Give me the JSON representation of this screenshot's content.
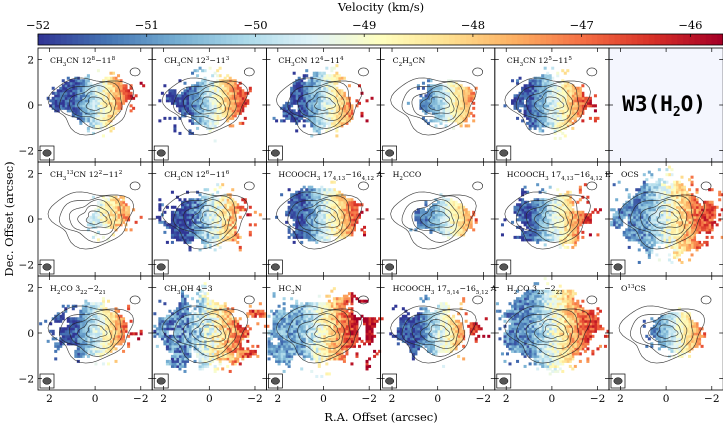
{
  "chart_data": {
    "type": "heatmap",
    "title": "Velocity (km/s)",
    "colorbar": {
      "label": "Velocity (km/s)",
      "range": [
        -52,
        -45.7
      ],
      "ticks": [
        -52,
        -51,
        -50,
        -49,
        -48,
        -47,
        -46
      ],
      "tick_labels": [
        "−52",
        "−51",
        "−50",
        "−49",
        "−48",
        "−47",
        "−46"
      ],
      "colormap": "RdYlBu_r"
    },
    "xlabel": "R.A. Offset (arcsec)",
    "ylabel": "Dec. Offset (arcsec)",
    "xlim": [
      2.5,
      -2.5
    ],
    "ylim": [
      -2.5,
      2.5
    ],
    "x_ticks": [
      2,
      0,
      -2
    ],
    "x_tick_labels": [
      "2",
      "0",
      "−2"
    ],
    "y_ticks": [
      2,
      0,
      -2
    ],
    "y_tick_labels": [
      "2",
      "0",
      "−2"
    ],
    "legend_placement": "title panel top-right: W3(H2O)",
    "source_name": "W3(H2O)",
    "panels": [
      {
        "row": 0,
        "col": 0,
        "label": "CH3CN 12_8-11_8",
        "parts": [
          [
            "CH",
            0
          ],
          [
            "3",
            1
          ],
          [
            "CN 12",
            0
          ],
          [
            "8",
            -1
          ],
          [
            "−11",
            0
          ],
          [
            "8",
            -1
          ]
        ],
        "style": "blue-red"
      },
      {
        "row": 0,
        "col": 1,
        "label": "CH3CN 12_3-11_3",
        "parts": [
          [
            "CH",
            0
          ],
          [
            "3",
            1
          ],
          [
            "CN 12",
            0
          ],
          [
            "3",
            -1
          ],
          [
            "−11",
            0
          ],
          [
            "3",
            -1
          ]
        ],
        "style": "blue-red"
      },
      {
        "row": 0,
        "col": 2,
        "label": "CH3CN 12_4-11_4",
        "parts": [
          [
            "CH",
            0
          ],
          [
            "3",
            1
          ],
          [
            "CN 12",
            0
          ],
          [
            "4",
            -1
          ],
          [
            "−11",
            0
          ],
          [
            "4",
            -1
          ]
        ],
        "style": "blue-red"
      },
      {
        "row": 0,
        "col": 3,
        "label": "C2H5CN",
        "parts": [
          [
            "C",
            0
          ],
          [
            "2",
            1
          ],
          [
            "H",
            0
          ],
          [
            "5",
            1
          ],
          [
            "CN",
            0
          ]
        ],
        "style": "small"
      },
      {
        "row": 0,
        "col": 4,
        "label": "CH3CN 12_5-11_5",
        "parts": [
          [
            "CH",
            0
          ],
          [
            "3",
            1
          ],
          [
            "CN 12",
            0
          ],
          [
            "5",
            -1
          ],
          [
            "−11",
            0
          ],
          [
            "5",
            -1
          ]
        ],
        "style": "blue-red"
      },
      {
        "row": 0,
        "col": 5,
        "label": "",
        "parts": [],
        "style": "title"
      },
      {
        "row": 1,
        "col": 0,
        "label": "CH3 13CN 12_2-11_2",
        "parts": [
          [
            "CH",
            0
          ],
          [
            "3",
            1
          ],
          [
            "13",
            -1
          ],
          [
            "CN 12",
            0
          ],
          [
            "2",
            -1
          ],
          [
            "−11",
            0
          ],
          [
            "2",
            -1
          ]
        ],
        "style": "sparse"
      },
      {
        "row": 1,
        "col": 1,
        "label": "CH3CN 12_6-11_6",
        "parts": [
          [
            "CH",
            0
          ],
          [
            "3",
            1
          ],
          [
            "CN 12",
            0
          ],
          [
            "6",
            -1
          ],
          [
            "−11",
            0
          ],
          [
            "6",
            -1
          ]
        ],
        "style": "deep-blue"
      },
      {
        "row": 1,
        "col": 2,
        "label": "HCOOCH3 17_4,13-16_4,12 A",
        "parts": [
          [
            "HCOOCH",
            0
          ],
          [
            "3",
            1
          ],
          [
            " 17",
            0
          ],
          [
            "4,13",
            1
          ],
          [
            "−16",
            0
          ],
          [
            "4,12",
            1
          ],
          [
            " A",
            0
          ]
        ],
        "style": "blue-red"
      },
      {
        "row": 1,
        "col": 3,
        "label": "H2CCO",
        "parts": [
          [
            "H",
            0
          ],
          [
            "2",
            1
          ],
          [
            "CCO",
            0
          ]
        ],
        "style": "small"
      },
      {
        "row": 1,
        "col": 4,
        "label": "HCOOCH3 17_4,13-16_4,12 E",
        "parts": [
          [
            "HCOOCH",
            0
          ],
          [
            "3",
            1
          ],
          [
            " 17",
            0
          ],
          [
            "4,13",
            1
          ],
          [
            "−16",
            0
          ],
          [
            "4,12",
            1
          ],
          [
            " E",
            0
          ]
        ],
        "style": "blue-red"
      },
      {
        "row": 1,
        "col": 5,
        "label": "OCS",
        "parts": [
          [
            "OCS",
            0
          ]
        ],
        "style": "wide-soft"
      },
      {
        "row": 2,
        "col": 0,
        "label": "H2CO 3_22-2_21",
        "parts": [
          [
            "H",
            0
          ],
          [
            "2",
            1
          ],
          [
            "CO 3",
            0
          ],
          [
            "22",
            1
          ],
          [
            "−2",
            0
          ],
          [
            "21",
            1
          ]
        ],
        "style": "blue-red"
      },
      {
        "row": 2,
        "col": 1,
        "label": "CH3OH 4-3",
        "parts": [
          [
            "CH",
            0
          ],
          [
            "3",
            1
          ],
          [
            "OH 4−3",
            0
          ]
        ],
        "style": "patchy"
      },
      {
        "row": 2,
        "col": 2,
        "label": "HC3N",
        "parts": [
          [
            "HC",
            0
          ],
          [
            "3",
            1
          ],
          [
            "N",
            0
          ]
        ],
        "style": "wide-red"
      },
      {
        "row": 2,
        "col": 3,
        "label": "HCOOCH3 17_5,14-16_5,12 A",
        "parts": [
          [
            "HCOOCH",
            0
          ],
          [
            "3",
            1
          ],
          [
            " 17",
            0
          ],
          [
            "5,14",
            1
          ],
          [
            "−16",
            0
          ],
          [
            "5,12",
            1
          ],
          [
            " A",
            0
          ]
        ],
        "style": "blue-red"
      },
      {
        "row": 2,
        "col": 4,
        "label": "H2CO 3_23-2_22",
        "parts": [
          [
            "H",
            0
          ],
          [
            "2",
            1
          ],
          [
            "CO 3",
            0
          ],
          [
            "23",
            1
          ],
          [
            "−2",
            0
          ],
          [
            "22",
            1
          ]
        ],
        "style": "wide-soft"
      },
      {
        "row": 2,
        "col": 5,
        "label": "O13CS",
        "parts": [
          [
            "O",
            0
          ],
          [
            "13",
            -1
          ],
          [
            "CS",
            0
          ]
        ],
        "style": "small"
      }
    ]
  }
}
